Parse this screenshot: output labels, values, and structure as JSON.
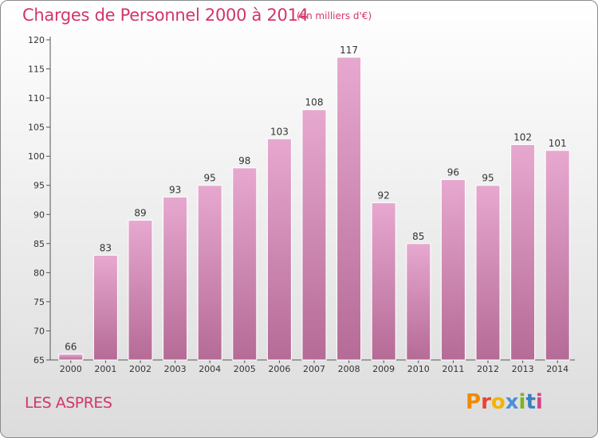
{
  "title": "Charges de Personnel 2000 à 2014",
  "unit_note": "(en milliers d'€)",
  "commune": "LES ASPRES",
  "brand": {
    "letters": [
      "P",
      "r",
      "o",
      "x",
      "i",
      "t",
      "i"
    ],
    "colors": [
      "#f08a00",
      "#e8452c",
      "#f3b300",
      "#4a90d9",
      "#7ab51d",
      "#3a7fc1",
      "#d93f8c"
    ]
  },
  "colors": {
    "bar_top": "#e7a8cf",
    "bar_bottom": "#b56b96",
    "title": "#d2356b"
  },
  "chart_data": {
    "type": "bar",
    "categories": [
      "2000",
      "2001",
      "2002",
      "2003",
      "2004",
      "2005",
      "2006",
      "2007",
      "2008",
      "2009",
      "2010",
      "2011",
      "2012",
      "2013",
      "2014"
    ],
    "values": [
      66,
      83,
      89,
      93,
      95,
      98,
      103,
      108,
      117,
      92,
      85,
      96,
      95,
      102,
      101
    ],
    "ylim": [
      65,
      120
    ],
    "yticks": [
      65,
      70,
      75,
      80,
      85,
      90,
      95,
      100,
      105,
      110,
      115,
      120
    ],
    "xlabel": "",
    "ylabel": "",
    "grid": false
  }
}
